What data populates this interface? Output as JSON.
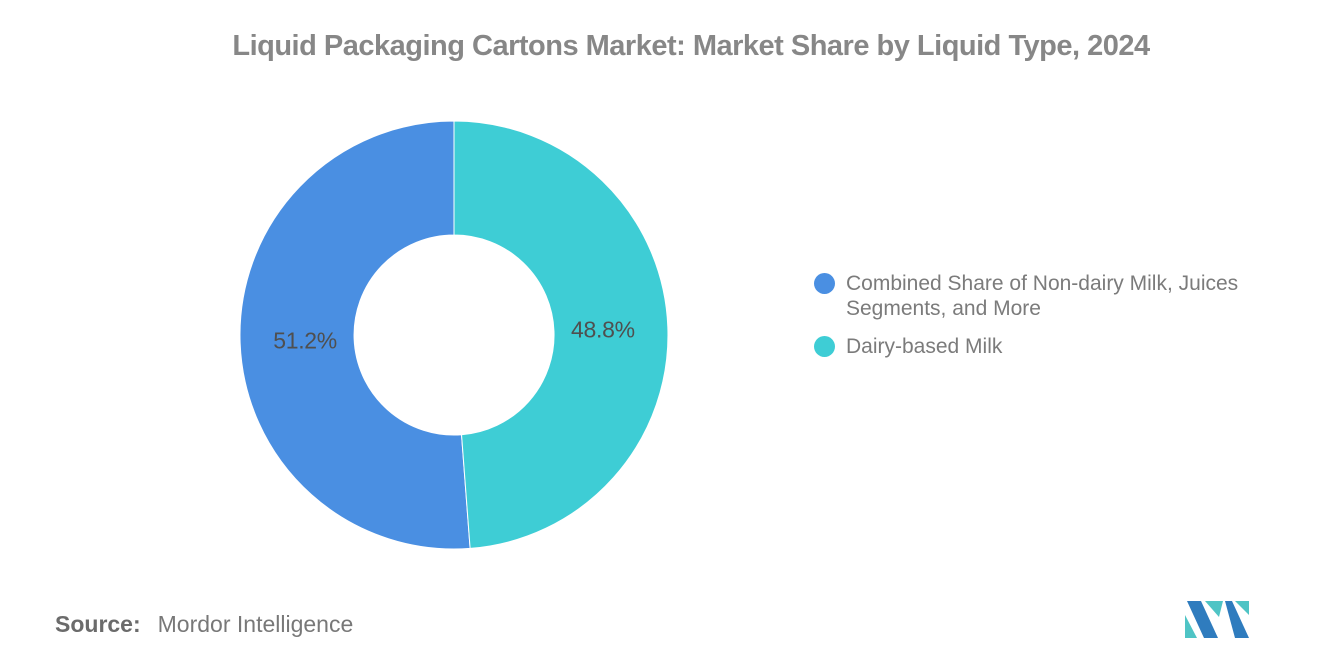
{
  "header": {
    "title": "Liquid Packaging Cartons Market: Market Share by Liquid Type, 2024"
  },
  "chart_data": {
    "type": "pie",
    "subtype": "donut",
    "title": "Liquid Packaging Cartons Market: Market Share by Liquid Type, 2024",
    "unit": "%",
    "slices": [
      {
        "name": "Combined Share of Non-dairy Milk, Juices Segments, and More",
        "value": 51.2,
        "data_label": "51.2%",
        "color": "#4A8FE2"
      },
      {
        "name": "Dairy-based Milk",
        "value": 48.8,
        "data_label": "48.8%",
        "color": "#3ECDD5"
      }
    ],
    "rotation_deg": 175.68,
    "inner_radius_ratio": 0.465,
    "legend_position": "right",
    "data_label_color": "#4F4F4F",
    "background": "#FFFFFF"
  },
  "footer": {
    "source_label": "Source:",
    "source_name": "Mordor Intelligence",
    "logo": {
      "name": "mordor-intelligence-logo",
      "blue": "#2F7CBE",
      "teal": "#4FC4C5"
    }
  }
}
